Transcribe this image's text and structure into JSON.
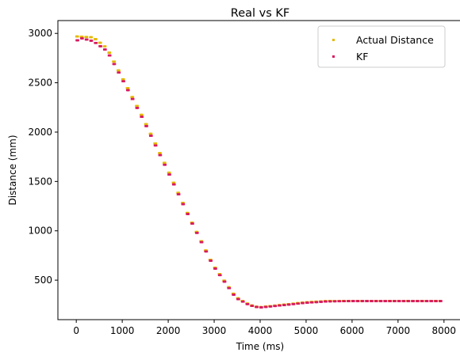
{
  "chart_data": {
    "type": "scatter",
    "title": "Real vs KF",
    "xlabel": "Time (ms)",
    "ylabel": "Distance (mm)",
    "xlim": [
      -400,
      8400
    ],
    "ylim": [
      100,
      3130
    ],
    "x_ticks": [
      0,
      1000,
      2000,
      3000,
      4000,
      5000,
      6000,
      7000,
      8000
    ],
    "y_ticks": [
      500,
      1000,
      1500,
      2000,
      2500,
      3000
    ],
    "grid": false,
    "legend_position": "top-right",
    "series": [
      {
        "name": "Actual Distance",
        "color": "#e6b800",
        "keypoints": [
          [
            0,
            2970
          ],
          [
            400,
            2960
          ],
          [
            700,
            2850
          ],
          [
            1000,
            2580
          ],
          [
            1500,
            2130
          ],
          [
            2000,
            1640
          ],
          [
            2500,
            1130
          ],
          [
            3000,
            660
          ],
          [
            3500,
            330
          ],
          [
            3800,
            250
          ],
          [
            4000,
            225
          ],
          [
            4500,
            250
          ],
          [
            5000,
            275
          ],
          [
            5500,
            290
          ],
          [
            6000,
            290
          ],
          [
            7000,
            290
          ],
          [
            8000,
            290
          ]
        ]
      },
      {
        "name": "KF",
        "color": "#d81b60",
        "keypoints": [
          [
            0,
            2920
          ],
          [
            150,
            2950
          ],
          [
            400,
            2920
          ],
          [
            700,
            2820
          ],
          [
            1000,
            2560
          ],
          [
            1500,
            2110
          ],
          [
            2000,
            1620
          ],
          [
            2500,
            1120
          ],
          [
            3000,
            650
          ],
          [
            3500,
            320
          ],
          [
            3800,
            245
          ],
          [
            4000,
            222
          ],
          [
            4500,
            245
          ],
          [
            5000,
            270
          ],
          [
            5500,
            285
          ],
          [
            6000,
            288
          ],
          [
            7000,
            288
          ],
          [
            8000,
            288
          ]
        ]
      }
    ]
  }
}
